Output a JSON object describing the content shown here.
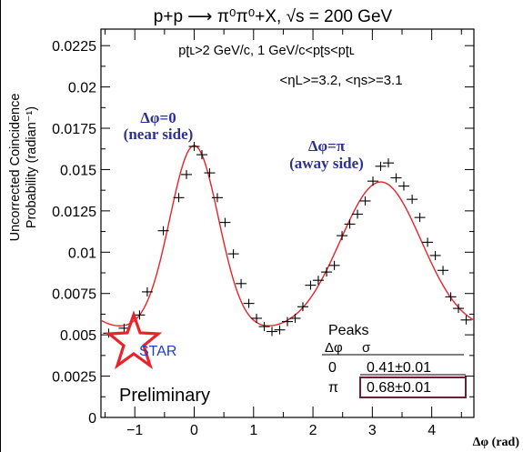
{
  "chart_data": {
    "type": "scatter",
    "title": "p+p ⟶ π⁰π⁰+X, √s = 200 GeV",
    "subtitle_lines": [
      "pʈʟ>2 GeV/c,  1 GeV/c<pʈs<pʈʟ",
      "<ηL>=3.2, <ηs>=3.1"
    ],
    "xlabel": "Δφ (rad)",
    "ylabel_lines": [
      "Uncorrected Coincidence",
      "Probability (radian⁻¹)"
    ],
    "xlim": [
      -1.57,
      4.71
    ],
    "ylim": [
      0,
      0.0235
    ],
    "xticks": [
      -1,
      0,
      1,
      2,
      3,
      4
    ],
    "yticks": [
      {
        "value": 0,
        "label": "0"
      },
      {
        "value": 0.0025,
        "label": "0.0025"
      },
      {
        "value": 0.005,
        "label": "0.005"
      },
      {
        "value": 0.0075,
        "label": "0.0075"
      },
      {
        "value": 0.01,
        "label": "0.01"
      },
      {
        "value": 0.0125,
        "label": "0.0125"
      },
      {
        "value": 0.015,
        "label": "0.015"
      },
      {
        "value": 0.0175,
        "label": "0.0175"
      },
      {
        "value": 0.02,
        "label": "0.02"
      },
      {
        "value": 0.0225,
        "label": "0.0225"
      }
    ],
    "points": [
      {
        "x": -1.44,
        "y": 0.0051
      },
      {
        "x": -1.18,
        "y": 0.0054
      },
      {
        "x": -0.92,
        "y": 0.0062
      },
      {
        "x": -0.79,
        "y": 0.0076
      },
      {
        "x": -0.52,
        "y": 0.0113
      },
      {
        "x": -0.26,
        "y": 0.0133
      },
      {
        "x": -0.13,
        "y": 0.0147
      },
      {
        "x": 0.0,
        "y": 0.0164
      },
      {
        "x": 0.13,
        "y": 0.0159
      },
      {
        "x": 0.26,
        "y": 0.0148
      },
      {
        "x": 0.39,
        "y": 0.0133
      },
      {
        "x": 0.52,
        "y": 0.0118
      },
      {
        "x": 0.66,
        "y": 0.0099
      },
      {
        "x": 0.79,
        "y": 0.0081
      },
      {
        "x": 0.92,
        "y": 0.0069
      },
      {
        "x": 1.05,
        "y": 0.006
      },
      {
        "x": 1.18,
        "y": 0.0055
      },
      {
        "x": 1.31,
        "y": 0.0052
      },
      {
        "x": 1.44,
        "y": 0.0053
      },
      {
        "x": 1.57,
        "y": 0.0058
      },
      {
        "x": 1.7,
        "y": 0.006
      },
      {
        "x": 1.83,
        "y": 0.0067
      },
      {
        "x": 1.96,
        "y": 0.008
      },
      {
        "x": 2.09,
        "y": 0.0083
      },
      {
        "x": 2.23,
        "y": 0.0088
      },
      {
        "x": 2.36,
        "y": 0.0092
      },
      {
        "x": 2.49,
        "y": 0.011
      },
      {
        "x": 2.62,
        "y": 0.0117
      },
      {
        "x": 2.75,
        "y": 0.0123
      },
      {
        "x": 2.88,
        "y": 0.0131
      },
      {
        "x": 3.01,
        "y": 0.0143
      },
      {
        "x": 3.14,
        "y": 0.0152
      },
      {
        "x": 3.27,
        "y": 0.0154
      },
      {
        "x": 3.4,
        "y": 0.0145
      },
      {
        "x": 3.53,
        "y": 0.014
      },
      {
        "x": 3.67,
        "y": 0.0132
      },
      {
        "x": 3.8,
        "y": 0.0121
      },
      {
        "x": 3.93,
        "y": 0.0106
      },
      {
        "x": 4.06,
        "y": 0.0098
      },
      {
        "x": 4.19,
        "y": 0.0089
      },
      {
        "x": 4.32,
        "y": 0.0073
      },
      {
        "x": 4.45,
        "y": 0.0066
      },
      {
        "x": 4.58,
        "y": 0.0059
      }
    ],
    "fit": {
      "baseline": 0.00525,
      "peaks": [
        {
          "center": 0,
          "amplitude": 0.0112,
          "sigma": 0.41
        },
        {
          "center": 3.14159,
          "amplitude": 0.009,
          "sigma": 0.68
        }
      ],
      "color": "#e8232a"
    },
    "annotations": {
      "near_side_1": "Δφ=0",
      "near_side_2": "(near side)",
      "away_side_1": "Δφ=π",
      "away_side_2": "(away side)",
      "annotation_color": "#2e3192"
    },
    "peaks_table": {
      "title": "Peaks",
      "header": [
        "Δφ",
        "σ"
      ],
      "rows": [
        {
          "dphi": "0",
          "sigma": "0.41±0.01"
        },
        {
          "dphi": "π",
          "sigma": "0.68±0.01"
        }
      ],
      "highlight_color": "#6b1f3a"
    },
    "logo": {
      "text": "STAR",
      "star_color": "#e8232a",
      "text_color": "#1f3fbf"
    },
    "status_label": "Preliminary"
  }
}
